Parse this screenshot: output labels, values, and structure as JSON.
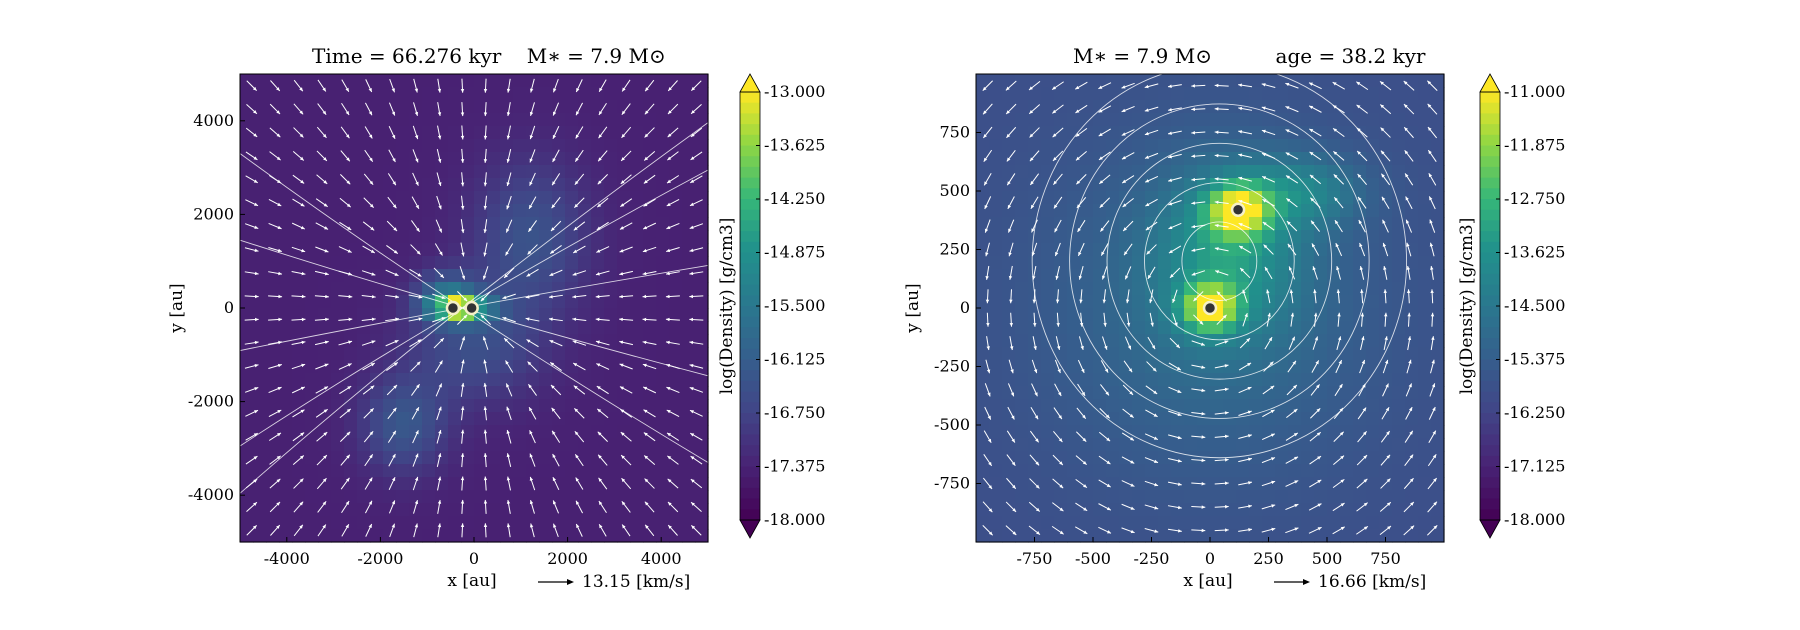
{
  "chart_data": [
    {
      "type": "heatmap",
      "title": "Time = 66.276 kyr    M∗ = 7.9 M⊙",
      "xlabel": "x [au]",
      "ylabel": "y [au]",
      "xlim": [
        -5000,
        5000
      ],
      "ylim": [
        -5000,
        5000
      ],
      "xticks": [
        -4000,
        -2000,
        0,
        2000,
        4000
      ],
      "yticks": [
        -4000,
        -2000,
        0,
        2000,
        4000
      ],
      "xtick_labels": [
        "-4000",
        "-2000",
        "0",
        "2000",
        "4000"
      ],
      "ytick_labels": [
        "-4000",
        "-2000",
        "0",
        "2000",
        "4000"
      ],
      "colorbar": {
        "label": "log(Density) [g/cm3]",
        "range": [
          -18.0,
          -13.0
        ],
        "ticks": [
          "-13.000",
          "-13.625",
          "-14.250",
          "-14.875",
          "-15.500",
          "-16.125",
          "-16.750",
          "-17.375",
          "-18.000"
        ],
        "colormap": "viridis"
      },
      "reference_vector": {
        "label": "13.15 [km/s]"
      },
      "sink_particles": [
        {
          "x": -450,
          "y": 0
        },
        {
          "x": -50,
          "y": 0
        }
      ]
    },
    {
      "type": "heatmap",
      "title": "M∗ = 7.9 M⊙          age = 38.2 kyr",
      "xlabel": "x [au]",
      "ylabel": "y [au]",
      "xlim": [
        -1000,
        1000
      ],
      "ylim": [
        -1000,
        1000
      ],
      "xticks": [
        -750,
        -500,
        -250,
        0,
        250,
        500,
        750
      ],
      "yticks": [
        -750,
        -500,
        -250,
        0,
        250,
        500,
        750
      ],
      "xtick_labels": [
        "-750",
        "-500",
        "-250",
        "0",
        "250",
        "500",
        "750"
      ],
      "ytick_labels": [
        "-750",
        "-500",
        "-250",
        "0",
        "250",
        "500",
        "750"
      ],
      "colorbar": {
        "label": "log(Density) [g/cm3]",
        "range": [
          -18.0,
          -11.0
        ],
        "ticks": [
          "-11.000",
          "-11.875",
          "-12.750",
          "-13.625",
          "-14.500",
          "-15.375",
          "-16.250",
          "-17.125",
          "-18.000"
        ],
        "colormap": "viridis"
      },
      "reference_vector": {
        "label": "16.66 [km/s]"
      },
      "sink_particles": [
        {
          "x": 0,
          "y": 0
        },
        {
          "x": 120,
          "y": 420
        }
      ]
    }
  ]
}
